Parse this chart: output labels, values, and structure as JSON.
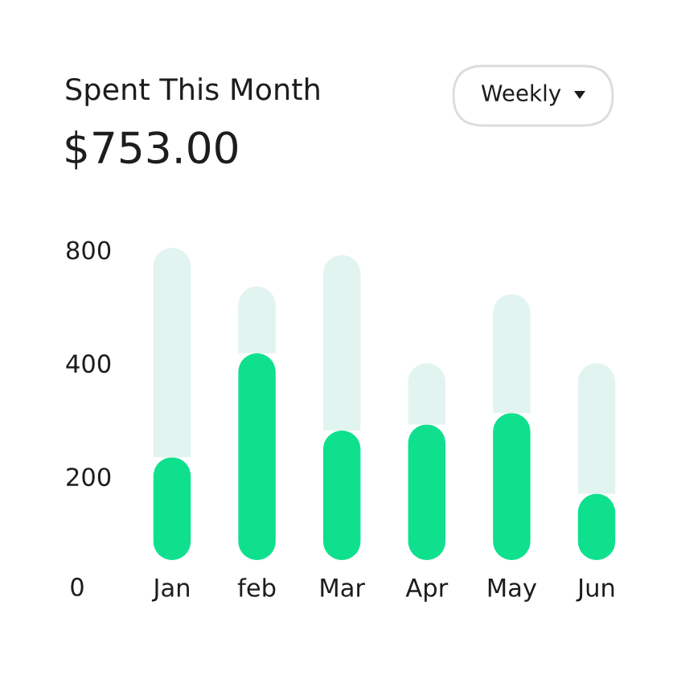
{
  "chart_data": {
    "type": "bar",
    "title": "Spent This Month",
    "subtitle": "$753.00",
    "annotations": [
      "Weekly",
      "0"
    ],
    "categories": [
      "Jan",
      "feb",
      "Mar",
      "Apr",
      "May",
      "Jun"
    ],
    "stacked": true,
    "series": [
      {
        "color": "#0fe08e",
        "values": [
          225,
          425,
          265,
          275,
          295,
          180
        ]
      },
      {
        "color": "#e2f4ef",
        "values": [
          585,
          215,
          510,
          125,
          315,
          220
        ]
      }
    ],
    "log": true,
    "ylim": [
      120,
      850
    ],
    "yticks": [
      200,
      400,
      800
    ],
    "grid": false
  }
}
